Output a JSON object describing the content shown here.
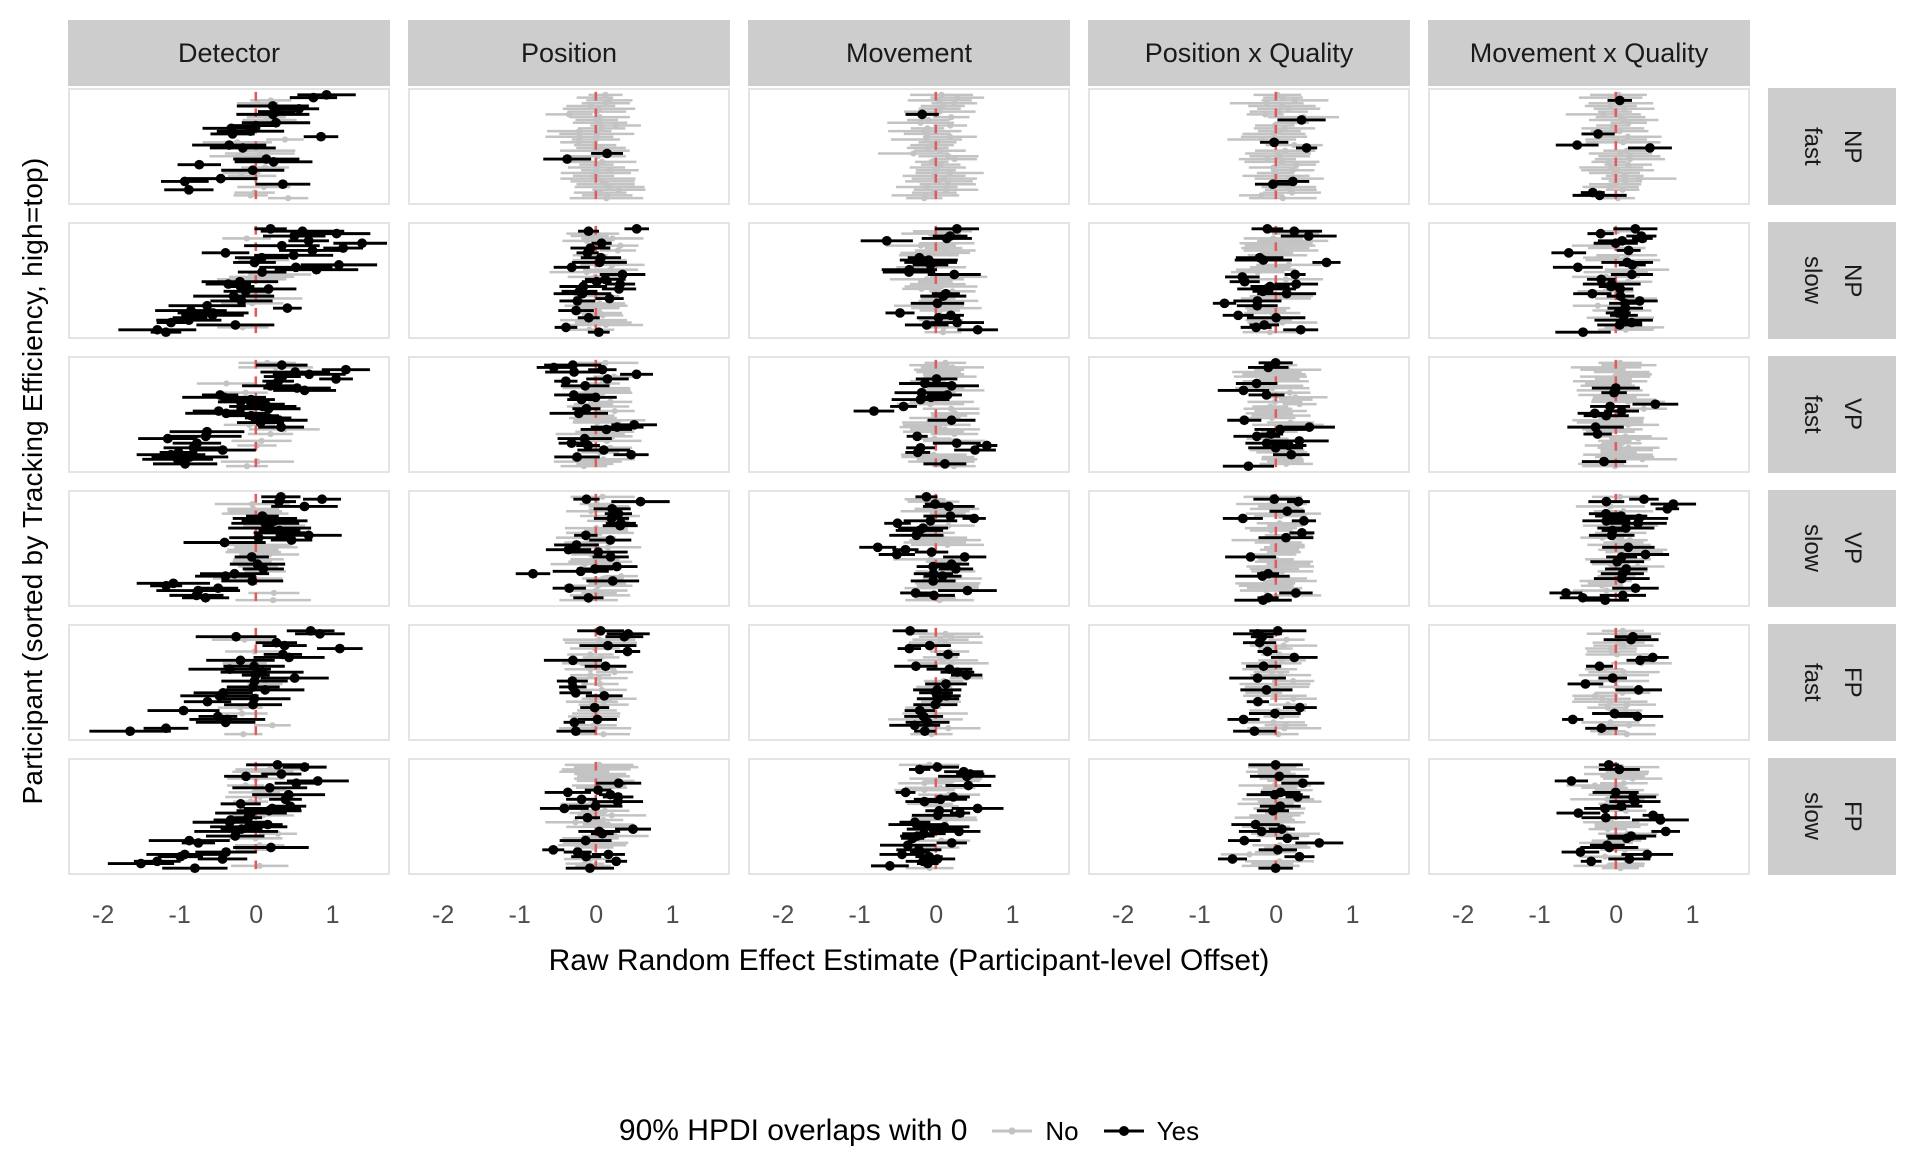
{
  "figure": {
    "y_axis_title": "Participant (sorted by Tracking Efficiency, high=top)",
    "x_axis_title": "Raw Random Effect Estimate (Participant-level Offset)"
  },
  "legend": {
    "title": "90% HPDI overlaps with 0",
    "items": [
      {
        "label": "No",
        "color": "#C3C3C3"
      },
      {
        "label": "Yes",
        "color": "#000000"
      }
    ]
  },
  "colors": {
    "strip_bg": "#CDCDCD",
    "strip_text": "#1A1A1A",
    "panel_bg": "#FFFFFF",
    "panel_border": "#E4E4E4",
    "tick_text": "#4D4D4D",
    "reference_line": "#E05C5C",
    "gray_interval": "#C3C3C3",
    "black_interval": "#000000"
  },
  "chart_data": {
    "type": "scatter",
    "subtype": "faceted forest/caterpillar plot: per-participant point estimates with HPDI interval bars",
    "x_domain": [
      -2.46,
      1.75
    ],
    "x_ticks": [
      -2,
      -1,
      0,
      1
    ],
    "reference_line_x": 0,
    "grid": false,
    "legend_position": "bottom",
    "facet_cols": [
      "Detector",
      "Position",
      "Movement",
      "Position x Quality",
      "Movement x Quality"
    ],
    "facet_row_labels_inner": [
      "fast",
      "slow",
      "fast",
      "slow",
      "fast",
      "slow"
    ],
    "facet_row_labels_outer": [
      "NP",
      "NP",
      "VP",
      "VP",
      "FP",
      "FP"
    ],
    "rows": [
      {
        "speed": "fast",
        "group": "NP",
        "n": 38,
        "panels": [
          {
            "black_frac": 0.62,
            "trend": 0.62,
            "mu": 0,
            "sigma": 0.35,
            "wide": true,
            "skew": true,
            "seed": 101
          },
          {
            "black_frac": 0.05,
            "trend": 0.05,
            "mu": 0,
            "sigma": 0.3,
            "seed": 102
          },
          {
            "black_frac": 0.16,
            "trend": 0.05,
            "mu": -0.28,
            "sigma": 0.22,
            "seed": 103
          },
          {
            "black_frac": 0.05,
            "trend": 0.05,
            "mu": 0,
            "sigma": 0.3,
            "seed": 104
          },
          {
            "black_frac": 0.2,
            "trend": 0.06,
            "mu": -0.15,
            "sigma": 0.3,
            "seed": 105
          }
        ]
      },
      {
        "speed": "slow",
        "group": "NP",
        "n": 44,
        "panels": [
          {
            "black_frac": 0.75,
            "trend": 0.72,
            "mu": 0,
            "sigma": 0.35,
            "wide": true,
            "skew": true,
            "seed": 201
          },
          {
            "black_frac": 0.5,
            "trend": 0.06,
            "mu": 0,
            "sigma": 0.3,
            "seed": 202
          },
          {
            "black_frac": 0.5,
            "trend": 0.06,
            "mu": 0,
            "sigma": 0.26,
            "seed": 203
          },
          {
            "black_frac": 0.42,
            "trend": 0.06,
            "mu": 0,
            "sigma": 0.28,
            "seed": 204
          },
          {
            "black_frac": 0.5,
            "trend": 0.06,
            "mu": 0.05,
            "sigma": 0.3,
            "seed": 205
          }
        ]
      },
      {
        "speed": "fast",
        "group": "VP",
        "n": 46,
        "panels": [
          {
            "black_frac": 0.62,
            "trend": 0.8,
            "mu": 0,
            "sigma": 0.35,
            "wide": true,
            "skew": true,
            "seed": 301
          },
          {
            "black_frac": 0.45,
            "trend": 0.06,
            "mu": 0,
            "sigma": 0.3,
            "seed": 302
          },
          {
            "black_frac": 0.42,
            "trend": 0.06,
            "mu": 0,
            "sigma": 0.26,
            "seed": 303
          },
          {
            "black_frac": 0.38,
            "trend": 0.06,
            "mu": 0,
            "sigma": 0.3,
            "seed": 304
          },
          {
            "black_frac": 0.3,
            "trend": 0.06,
            "mu": 0.05,
            "sigma": 0.28,
            "seed": 305
          }
        ]
      },
      {
        "speed": "slow",
        "group": "VP",
        "n": 44,
        "panels": [
          {
            "black_frac": 0.7,
            "trend": 0.62,
            "mu": 0,
            "sigma": 0.32,
            "wide": true,
            "skew": true,
            "seed": 401
          },
          {
            "black_frac": 0.45,
            "trend": 0.06,
            "mu": 0,
            "sigma": 0.28,
            "seed": 402
          },
          {
            "black_frac": 0.5,
            "trend": 0.06,
            "mu": 0,
            "sigma": 0.26,
            "seed": 403
          },
          {
            "black_frac": 0.32,
            "trend": 0.06,
            "mu": 0,
            "sigma": 0.28,
            "seed": 404
          },
          {
            "black_frac": 0.5,
            "trend": 0.06,
            "mu": 0.05,
            "sigma": 0.3,
            "seed": 405
          }
        ]
      },
      {
        "speed": "fast",
        "group": "FP",
        "n": 36,
        "panels": [
          {
            "black_frac": 0.6,
            "trend": 0.55,
            "mu": 0,
            "sigma": 0.3,
            "wide": true,
            "skew": true,
            "seed": 501
          },
          {
            "black_frac": 0.45,
            "trend": 0.06,
            "mu": 0,
            "sigma": 0.28,
            "seed": 502
          },
          {
            "black_frac": 0.5,
            "trend": 0.06,
            "mu": 0,
            "sigma": 0.26,
            "seed": 503
          },
          {
            "black_frac": 0.45,
            "trend": 0.06,
            "mu": -0.05,
            "sigma": 0.28,
            "seed": 504
          },
          {
            "black_frac": 0.45,
            "trend": 0.06,
            "mu": 0,
            "sigma": 0.28,
            "seed": 505
          }
        ]
      },
      {
        "speed": "slow",
        "group": "FP",
        "n": 46,
        "panels": [
          {
            "black_frac": 0.72,
            "trend": 0.72,
            "mu": 0,
            "sigma": 0.34,
            "wide": true,
            "skew": true,
            "seed": 601
          },
          {
            "black_frac": 0.5,
            "trend": 0.06,
            "mu": 0,
            "sigma": 0.3,
            "seed": 602
          },
          {
            "black_frac": 0.55,
            "trend": 0.06,
            "mu": 0,
            "sigma": 0.26,
            "seed": 603
          },
          {
            "black_frac": 0.4,
            "trend": 0.06,
            "mu": 0,
            "sigma": 0.28,
            "seed": 604
          },
          {
            "black_frac": 0.4,
            "trend": 0.06,
            "mu": 0.05,
            "sigma": 0.3,
            "seed": 605
          }
        ]
      }
    ]
  }
}
